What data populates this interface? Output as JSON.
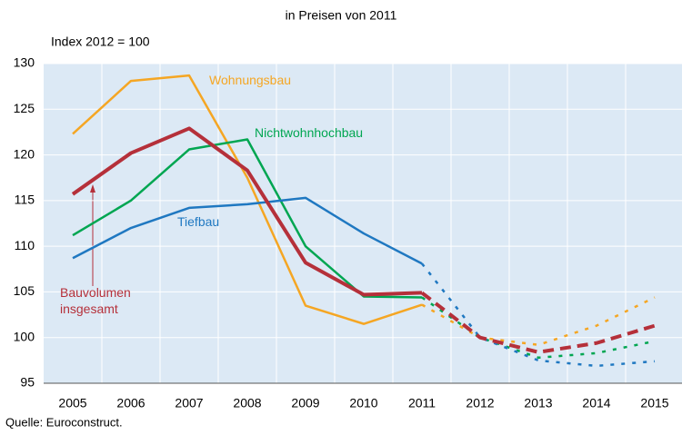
{
  "chart_data": {
    "type": "line",
    "title": "in Preisen von 2011",
    "y_label": "Index 2012 = 100",
    "source": "Quelle: Euroconstruct.",
    "categories": [
      "2005",
      "2006",
      "2007",
      "2008",
      "2009",
      "2010",
      "2011",
      "2012",
      "2013",
      "2014",
      "2015"
    ],
    "dashed_from": 6,
    "ylim": [
      95,
      130
    ],
    "yticks": [
      95,
      100,
      105,
      110,
      115,
      120,
      125,
      130
    ],
    "grid": true,
    "series": [
      {
        "name": "Wohnungsbau",
        "color": "#f5a623",
        "values": [
          122.3,
          128.1,
          128.7,
          117.5,
          103.5,
          101.5,
          103.6,
          100,
          99.2,
          101.3,
          104.4
        ]
      },
      {
        "name": "Nichtwohnhochbau",
        "color": "#00a651",
        "values": [
          111.2,
          115,
          120.6,
          121.7,
          110,
          104.5,
          104.4,
          100,
          97.8,
          98.3,
          99.6
        ]
      },
      {
        "name": "Tiefbau",
        "color": "#1f78c1",
        "values": [
          108.7,
          112,
          114.2,
          114.6,
          115.3,
          111.4,
          108.1,
          100,
          97.5,
          96.9,
          97.4
        ]
      },
      {
        "name": "Bauvolumen insgesamt",
        "color": "#b5303a",
        "values": [
          115.7,
          120.2,
          122.9,
          118.3,
          108.2,
          104.7,
          104.9,
          100,
          98.4,
          99.4,
          101.3
        ]
      }
    ]
  }
}
